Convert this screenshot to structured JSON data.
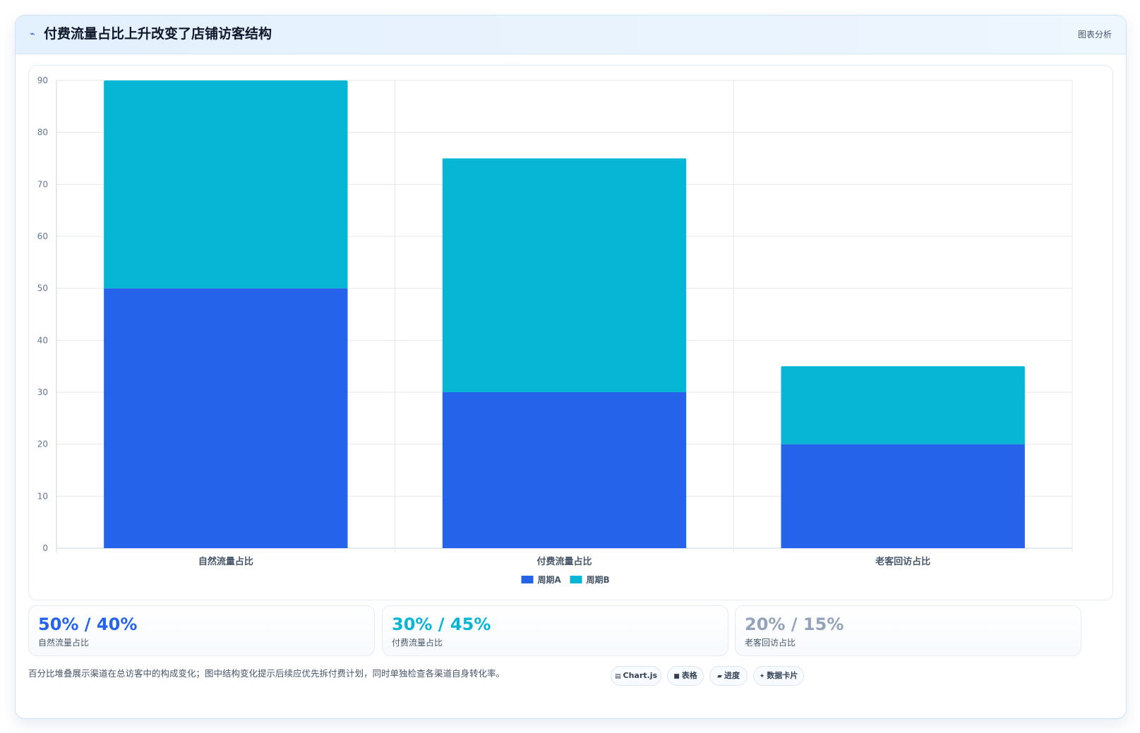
{
  "header": {
    "icon": "trend-icon",
    "title": "付费流量占比上升改变了店铺访客结构",
    "tag": "图表分析"
  },
  "chart_data": {
    "type": "bar",
    "stacked": true,
    "categories": [
      "自然流量占比",
      "付费流量占比",
      "老客回访占比"
    ],
    "series": [
      {
        "name": "周期A",
        "color": "#2563eb",
        "values": [
          50,
          30,
          20
        ]
      },
      {
        "name": "周期B",
        "color": "#06b6d4",
        "values": [
          40,
          45,
          15
        ]
      }
    ],
    "yticks": [
      0,
      10,
      20,
      30,
      40,
      50,
      60,
      70,
      80,
      90
    ],
    "ylim": [
      0,
      90
    ],
    "grid": true,
    "legend_position": "bottom",
    "title": "",
    "xlabel": "",
    "ylabel": ""
  },
  "stats": [
    {
      "value": "50% / 40%",
      "label": "自然流量占比",
      "color": "#2563eb"
    },
    {
      "value": "30% / 45%",
      "label": "付费流量占比",
      "color": "#06b6d4"
    },
    {
      "value": "20% / 15%",
      "label": "老客回访占比",
      "color": "#94a3b8"
    }
  ],
  "footnote": "百分比堆叠展示渠道在总访客中的构成变化；图中结构变化提示后续应优先拆付费计划，同时单独检查各渠道自身转化率。",
  "pills": [
    {
      "icon": "chart-icon",
      "glyph": "▤",
      "label": "Chart.js"
    },
    {
      "icon": "table-icon",
      "glyph": "■",
      "label": "表格"
    },
    {
      "icon": "progress-icon",
      "glyph": "▰",
      "label": "进度"
    },
    {
      "icon": "card-icon",
      "glyph": "✦",
      "label": "数据卡片"
    }
  ]
}
